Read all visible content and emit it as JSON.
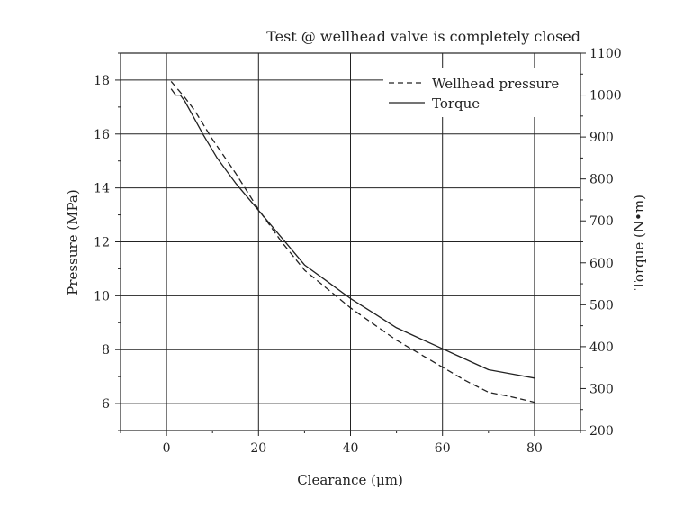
{
  "chart_data": {
    "type": "line",
    "title": "Test @ wellhead valve is completely closed",
    "xlabel": "Clearance (μm)",
    "ylabel": "Pressure (MPa)",
    "y2label": "Torque (N•m)",
    "xlim": [
      -10,
      90
    ],
    "ylim": [
      5,
      19
    ],
    "y2lim": [
      200,
      1100
    ],
    "x_ticks": [
      0,
      20,
      40,
      60,
      80
    ],
    "y_ticks": [
      6,
      8,
      10,
      12,
      14,
      16,
      18
    ],
    "y2_ticks": [
      200,
      300,
      400,
      500,
      600,
      700,
      800,
      900,
      1000,
      1100
    ],
    "grid": true,
    "legend_position": "top-right",
    "series": [
      {
        "name": "Wellhead pressure",
        "axis": "left",
        "style": "dashed",
        "x": [
          1,
          2,
          4,
          6,
          8,
          10,
          15,
          20,
          25,
          30,
          35,
          40,
          45,
          50,
          55,
          60,
          65,
          70,
          75,
          80
        ],
        "y": [
          17.95,
          17.75,
          17.35,
          16.9,
          16.35,
          15.8,
          14.55,
          13.2,
          12.0,
          10.95,
          10.25,
          9.55,
          8.95,
          8.35,
          7.85,
          7.35,
          6.85,
          6.42,
          6.25,
          6.05
        ]
      },
      {
        "name": "Torque",
        "axis": "right",
        "style": "solid",
        "x": [
          1,
          2,
          3,
          4,
          6,
          8,
          11,
          15,
          20,
          25,
          30,
          35,
          40,
          45,
          50,
          55,
          60,
          65,
          70,
          75,
          80
        ],
        "y": [
          1015,
          1000,
          1000,
          985,
          945,
          905,
          850,
          790,
          725,
          660,
          595,
          555,
          515,
          480,
          445,
          420,
          395,
          370,
          345,
          335,
          325
        ]
      }
    ]
  }
}
